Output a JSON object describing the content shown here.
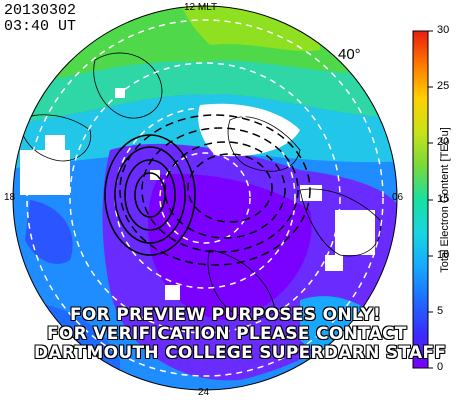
{
  "header": {
    "date": "20130302",
    "time": "03:40 UT"
  },
  "latitude_label": "40°",
  "mlt_labels": {
    "top": "12 MLT",
    "left": "18",
    "right": "06",
    "bottom": "24"
  },
  "overlay": [
    "FOR PREVIEW PURPOSES ONLY!",
    "FOR VERIFICATION PLEASE CONTACT",
    "DARTMOUTH COLLEGE SUPERDARN STAFF"
  ],
  "colorbar": {
    "title": "Total Electron Content [TECu]",
    "min": 0,
    "max": 30,
    "ticks": [
      "0",
      "5",
      "10",
      "15",
      "20",
      "25",
      "30"
    ],
    "colors": [
      "#7a00ff",
      "#3a2cff",
      "#1f6bff",
      "#18c4ff",
      "#19e0a0",
      "#44d84a",
      "#9be22a",
      "#dde80f",
      "#ffb300",
      "#ff6a00",
      "#e81d0f"
    ]
  },
  "map": {
    "projection": "polar",
    "min_latitude": 40,
    "background": "#ffffff"
  }
}
